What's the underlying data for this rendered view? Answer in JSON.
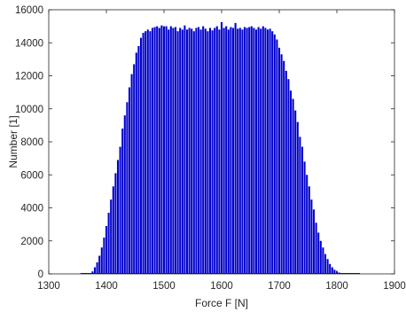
{
  "chart_data": {
    "type": "bar",
    "title": "",
    "xlabel": "Force F [N]",
    "ylabel": "Number [1]",
    "xlim": [
      1300,
      1900
    ],
    "ylim": [
      0,
      16000
    ],
    "xticks": [
      "1300",
      "1400",
      "1500",
      "1600",
      "1700",
      "1800",
      "1900"
    ],
    "yticks": [
      "0",
      "2000",
      "4000",
      "6000",
      "8000",
      "10000",
      "12000",
      "14000",
      "16000"
    ],
    "grid": false,
    "bar_color": "#0000cc",
    "x": [
      1376,
      1380,
      1384,
      1388,
      1392,
      1396,
      1400,
      1404,
      1408,
      1412,
      1416,
      1420,
      1424,
      1428,
      1432,
      1436,
      1440,
      1444,
      1448,
      1452,
      1456,
      1460,
      1464,
      1468,
      1472,
      1476,
      1480,
      1484,
      1488,
      1492,
      1496,
      1500,
      1504,
      1508,
      1512,
      1516,
      1520,
      1524,
      1528,
      1532,
      1536,
      1540,
      1544,
      1548,
      1552,
      1556,
      1560,
      1564,
      1568,
      1572,
      1576,
      1580,
      1584,
      1588,
      1592,
      1596,
      1600,
      1604,
      1608,
      1612,
      1616,
      1620,
      1624,
      1628,
      1632,
      1636,
      1640,
      1644,
      1648,
      1652,
      1656,
      1660,
      1664,
      1668,
      1672,
      1676,
      1680,
      1684,
      1688,
      1692,
      1696,
      1700,
      1704,
      1708,
      1712,
      1716,
      1720,
      1724,
      1728,
      1732,
      1736,
      1740,
      1744,
      1748,
      1752,
      1756,
      1760,
      1764,
      1768,
      1772,
      1776,
      1780,
      1784,
      1788,
      1792,
      1796,
      1800,
      1804,
      1808,
      1812,
      1816
    ],
    "values": [
      150,
      400,
      700,
      1100,
      1600,
      2200,
      2900,
      3700,
      4500,
      5300,
      6100,
      6900,
      7700,
      8800,
      9600,
      10400,
      11300,
      12100,
      12700,
      13400,
      13800,
      14300,
      14600,
      14700,
      14800,
      14700,
      14900,
      14950,
      15000,
      14900,
      15050,
      15000,
      15000,
      14800,
      15000,
      14900,
      14950,
      14700,
      14900,
      14800,
      15050,
      14800,
      14900,
      14850,
      14700,
      14900,
      14950,
      14800,
      15000,
      14850,
      14700,
      14900,
      14750,
      14900,
      15000,
      14800,
      15250,
      14900,
      15000,
      14800,
      14950,
      14900,
      15200,
      14850,
      14900,
      14800,
      14950,
      14900,
      14950,
      15000,
      14900,
      14800,
      14950,
      14850,
      15000,
      14900,
      14800,
      14850,
      14700,
      14500,
      14200,
      13700,
      13300,
      12900,
      12300,
      11800,
      11100,
      10600,
      9900,
      9200,
      8300,
      7700,
      6800,
      6000,
      5300,
      4500,
      3900,
      3100,
      2500,
      2000,
      1600,
      1200,
      900,
      600,
      400,
      250,
      150,
      80,
      40,
      20,
      10
    ]
  }
}
